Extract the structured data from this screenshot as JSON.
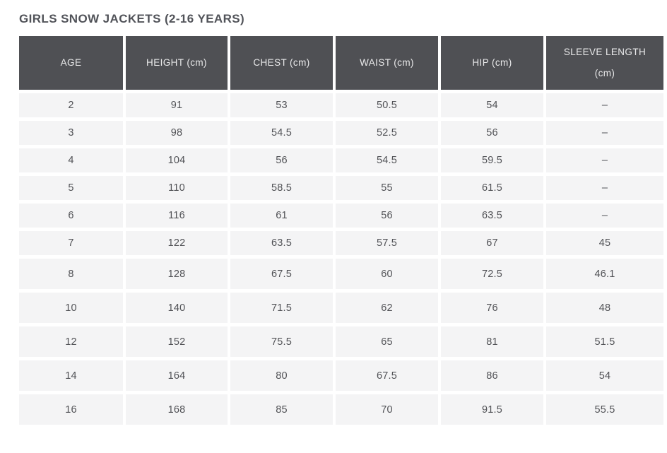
{
  "chart_data": {
    "type": "table",
    "title": "GIRLS SNOW JACKETS (2-16 YEARS)",
    "columns": [
      "AGE",
      "HEIGHT (cm)",
      "CHEST (cm)",
      "WAIST (cm)",
      "HIP (cm)",
      "SLEEVE LENGTH (cm)"
    ],
    "rows": [
      [
        "2",
        "91",
        "53",
        "50.5",
        "54",
        "–"
      ],
      [
        "3",
        "98",
        "54.5",
        "52.5",
        "56",
        "–"
      ],
      [
        "4",
        "104",
        "56",
        "54.5",
        "59.5",
        "–"
      ],
      [
        "5",
        "110",
        "58.5",
        "55",
        "61.5",
        "–"
      ],
      [
        "6",
        "116",
        "61",
        "56",
        "63.5",
        "–"
      ],
      [
        "7",
        "122",
        "63.5",
        "57.5",
        "67",
        "45"
      ],
      [
        "8",
        "128",
        "67.5",
        "60",
        "72.5",
        "46.1"
      ],
      [
        "10",
        "140",
        "71.5",
        "62",
        "76",
        "48"
      ],
      [
        "12",
        "152",
        "75.5",
        "65",
        "81",
        "51.5"
      ],
      [
        "14",
        "164",
        "80",
        "67.5",
        "86",
        "54"
      ],
      [
        "16",
        "168",
        "85",
        "70",
        "91.5",
        "55.5"
      ]
    ],
    "empty_value": "–"
  },
  "colors": {
    "header_bg": "#4f5054",
    "header_text": "#eaeaeb",
    "row_bg": "#f4f4f5",
    "cell_text": "#515256",
    "title_text": "#515359",
    "page_bg": "#ffffff"
  }
}
